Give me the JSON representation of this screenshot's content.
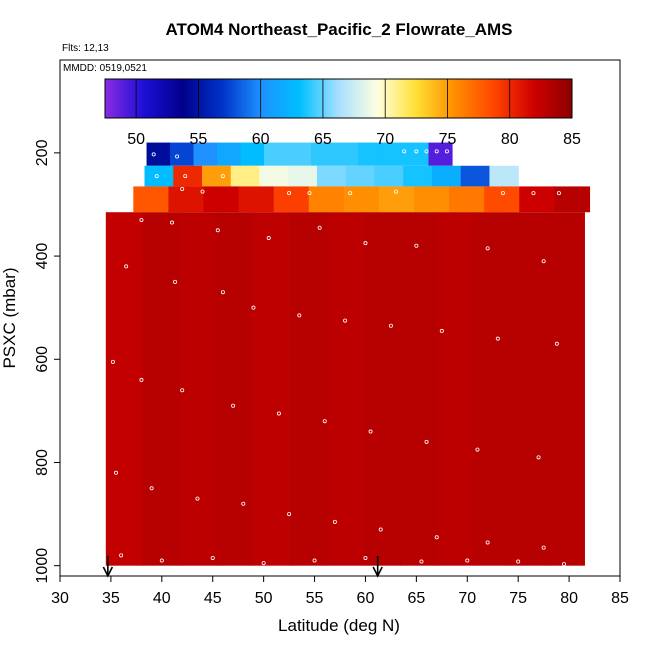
{
  "chart_data": {
    "type": "heatmap",
    "title": "ATOM4 Northeast_Pacific_2 Flowrate_AMS",
    "subtitle_flights": "Flts: 12,13",
    "subtitle_dates": "MMDD: 0519,0521",
    "xlabel": "Latitude (deg N)",
    "ylabel": "PSXC (mbar)",
    "xlim": [
      30,
      85
    ],
    "ylim": [
      1020,
      20
    ],
    "y_reversed": true,
    "x_ticks": [
      "30",
      "35",
      "40",
      "45",
      "50",
      "55",
      "60",
      "65",
      "70",
      "75",
      "80",
      "85"
    ],
    "y_ticks": [
      "200",
      "400",
      "600",
      "800",
      "1000"
    ],
    "colorbar": {
      "min": 47.5,
      "max": 85,
      "ticks": [
        "50",
        "55",
        "60",
        "65",
        "70",
        "75",
        "80",
        "85"
      ],
      "colors": [
        "#8a2be2",
        "#1c0fd6",
        "#00008b",
        "#0032c8",
        "#1e90ff",
        "#00bfff",
        "#a6e0ff",
        "#ffffe0",
        "#ffe033",
        "#ff8c00",
        "#ff4500",
        "#d00000",
        "#8b0000"
      ]
    },
    "arrows_lat": [
      34.7,
      61.2
    ],
    "layers": [
      {
        "p_top": 180,
        "p_bot": 225,
        "lat_start": 38.5,
        "lat_end": 68.5,
        "values": [
          54.5,
          57.5,
          60,
          61.5,
          63,
          64.5,
          64.5,
          64,
          64,
          63.5,
          63.5,
          63.5,
          49
        ]
      },
      {
        "p_top": 225,
        "p_bot": 265,
        "lat_start": 38.3,
        "lat_end": 75,
        "values": [
          63,
          80,
          75,
          71,
          69,
          68.5,
          65.5,
          65,
          64.5,
          63.5,
          62,
          58,
          67
        ]
      },
      {
        "p_top": 265,
        "p_bot": 315,
        "lat_start": 37.2,
        "lat_end": 82,
        "values": [
          78,
          81,
          82,
          81,
          79,
          76,
          75.5,
          75,
          75.5,
          76.5,
          78.5,
          82,
          83
        ]
      },
      {
        "p_top": 315,
        "p_bot": 1000,
        "lat_start": 34.5,
        "lat_end": 81.5,
        "values": [
          82.5,
          83,
          82.8,
          83,
          82.7,
          83,
          82.8,
          83,
          83,
          82.8,
          83,
          83,
          83
        ]
      }
    ],
    "sample_points": [
      [
        39.2,
        203
      ],
      [
        41.5,
        207
      ],
      [
        63.8,
        197
      ],
      [
        65,
        197
      ],
      [
        66,
        197
      ],
      [
        67,
        197
      ],
      [
        68,
        197
      ],
      [
        39.5,
        245
      ],
      [
        42.3,
        245
      ],
      [
        46,
        245
      ],
      [
        42,
        270
      ],
      [
        44,
        275
      ],
      [
        52.5,
        278
      ],
      [
        54.5,
        278
      ],
      [
        58.5,
        278
      ],
      [
        63,
        275
      ],
      [
        73.5,
        278
      ],
      [
        76.5,
        278
      ],
      [
        79,
        278
      ],
      [
        38,
        330
      ],
      [
        41,
        335
      ],
      [
        45.5,
        350
      ],
      [
        50.5,
        365
      ],
      [
        55.5,
        345
      ],
      [
        60,
        375
      ],
      [
        65,
        380
      ],
      [
        72,
        385
      ],
      [
        77.5,
        410
      ],
      [
        36.5,
        420
      ],
      [
        41.3,
        450
      ],
      [
        46,
        470
      ],
      [
        49,
        500
      ],
      [
        53.5,
        515
      ],
      [
        58,
        525
      ],
      [
        62.5,
        535
      ],
      [
        67.5,
        545
      ],
      [
        73,
        560
      ],
      [
        78.8,
        570
      ],
      [
        35.2,
        605
      ],
      [
        38,
        640
      ],
      [
        42,
        660
      ],
      [
        47,
        690
      ],
      [
        51.5,
        705
      ],
      [
        56,
        720
      ],
      [
        60.5,
        740
      ],
      [
        66,
        760
      ],
      [
        71,
        775
      ],
      [
        77,
        790
      ],
      [
        35.5,
        820
      ],
      [
        39,
        850
      ],
      [
        43.5,
        870
      ],
      [
        48,
        880
      ],
      [
        52.5,
        900
      ],
      [
        57,
        915
      ],
      [
        61.5,
        930
      ],
      [
        67,
        945
      ],
      [
        72,
        955
      ],
      [
        77.5,
        965
      ],
      [
        36,
        980
      ],
      [
        40,
        990
      ],
      [
        45,
        985
      ],
      [
        50,
        995
      ],
      [
        55,
        990
      ],
      [
        60,
        985
      ],
      [
        65.5,
        992
      ],
      [
        70,
        990
      ],
      [
        75,
        992
      ],
      [
        79.5,
        997
      ]
    ]
  }
}
